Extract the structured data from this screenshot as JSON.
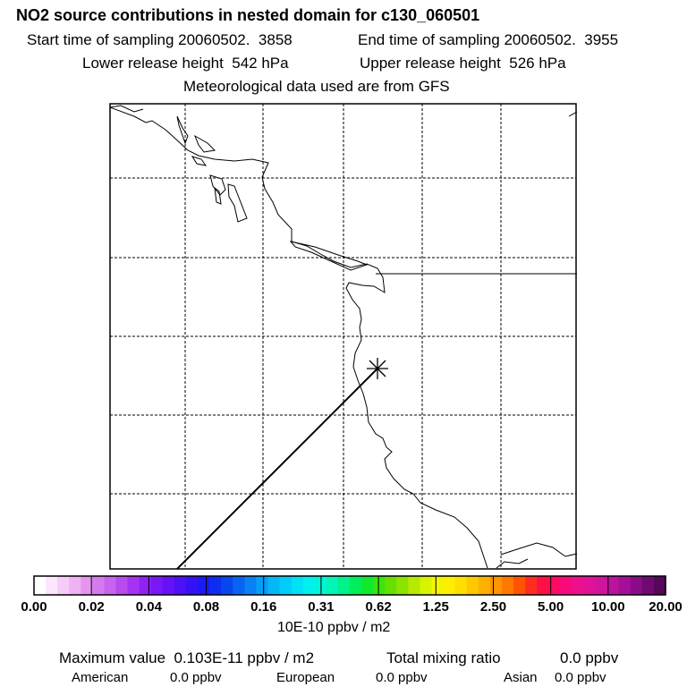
{
  "header": {
    "title": "NO2 source contributions in nested domain for c130_060501",
    "start_time": "Start time of sampling 20060502.  3858",
    "end_time": "End time of sampling 20060502.  3955",
    "lower_height": "Lower release height  542 hPa",
    "upper_height": "Upper release height  526 hPa",
    "met_data": "Meteorological data used are from GFS"
  },
  "colorbar": {
    "ticks": [
      "0.00",
      "0.02",
      "0.04",
      "0.08",
      "0.16",
      "0.31",
      "0.62",
      "1.25",
      "2.50",
      "5.00",
      "10.00",
      "20.00"
    ],
    "units": "10E-10 ppbv / m2",
    "colors": [
      "#ffffff",
      "#fbe6fb",
      "#f5ccf7",
      "#efb2f3",
      "#e595ef",
      "#d77aee",
      "#c863ed",
      "#b84aef",
      "#a633f2",
      "#8f22f5",
      "#7a17f6",
      "#6611f6",
      "#4d10f5",
      "#3412f5",
      "#1e18f3",
      "#0d2ef0",
      "#0846f0",
      "#0a63f2",
      "#0a80f5",
      "#069df7",
      "#04b8f8",
      "#00cdf9",
      "#00e0f7",
      "#00f0f0",
      "#00f5d8",
      "#00f5b6",
      "#00f28a",
      "#00ee5c",
      "#10e92e",
      "#3be40e",
      "#66e000",
      "#8ee200",
      "#b6ea00",
      "#d9f200",
      "#f2f500",
      "#ffee00",
      "#ffde00",
      "#ffc800",
      "#ffb000",
      "#ff9500",
      "#ff7800",
      "#ff5400",
      "#ff2d1f",
      "#ff1044",
      "#ff0a63",
      "#f90a7c",
      "#ee0f8e",
      "#e01398",
      "#cf14a0",
      "#bb12a0",
      "#a30f96",
      "#8b0c88",
      "#700a72",
      "#55085a"
    ]
  },
  "summary": {
    "max_value": "Maximum value  0.103E-11 ppbv / m2",
    "total_label": "Total mixing ratio",
    "total_value": "0.0 ppbv"
  },
  "regions": [
    {
      "name": "American",
      "value": "0.0 ppbv"
    },
    {
      "name": "European",
      "value": "0.0 ppbv"
    },
    {
      "name": "Asian",
      "value": "0.0 ppbv"
    }
  ]
}
